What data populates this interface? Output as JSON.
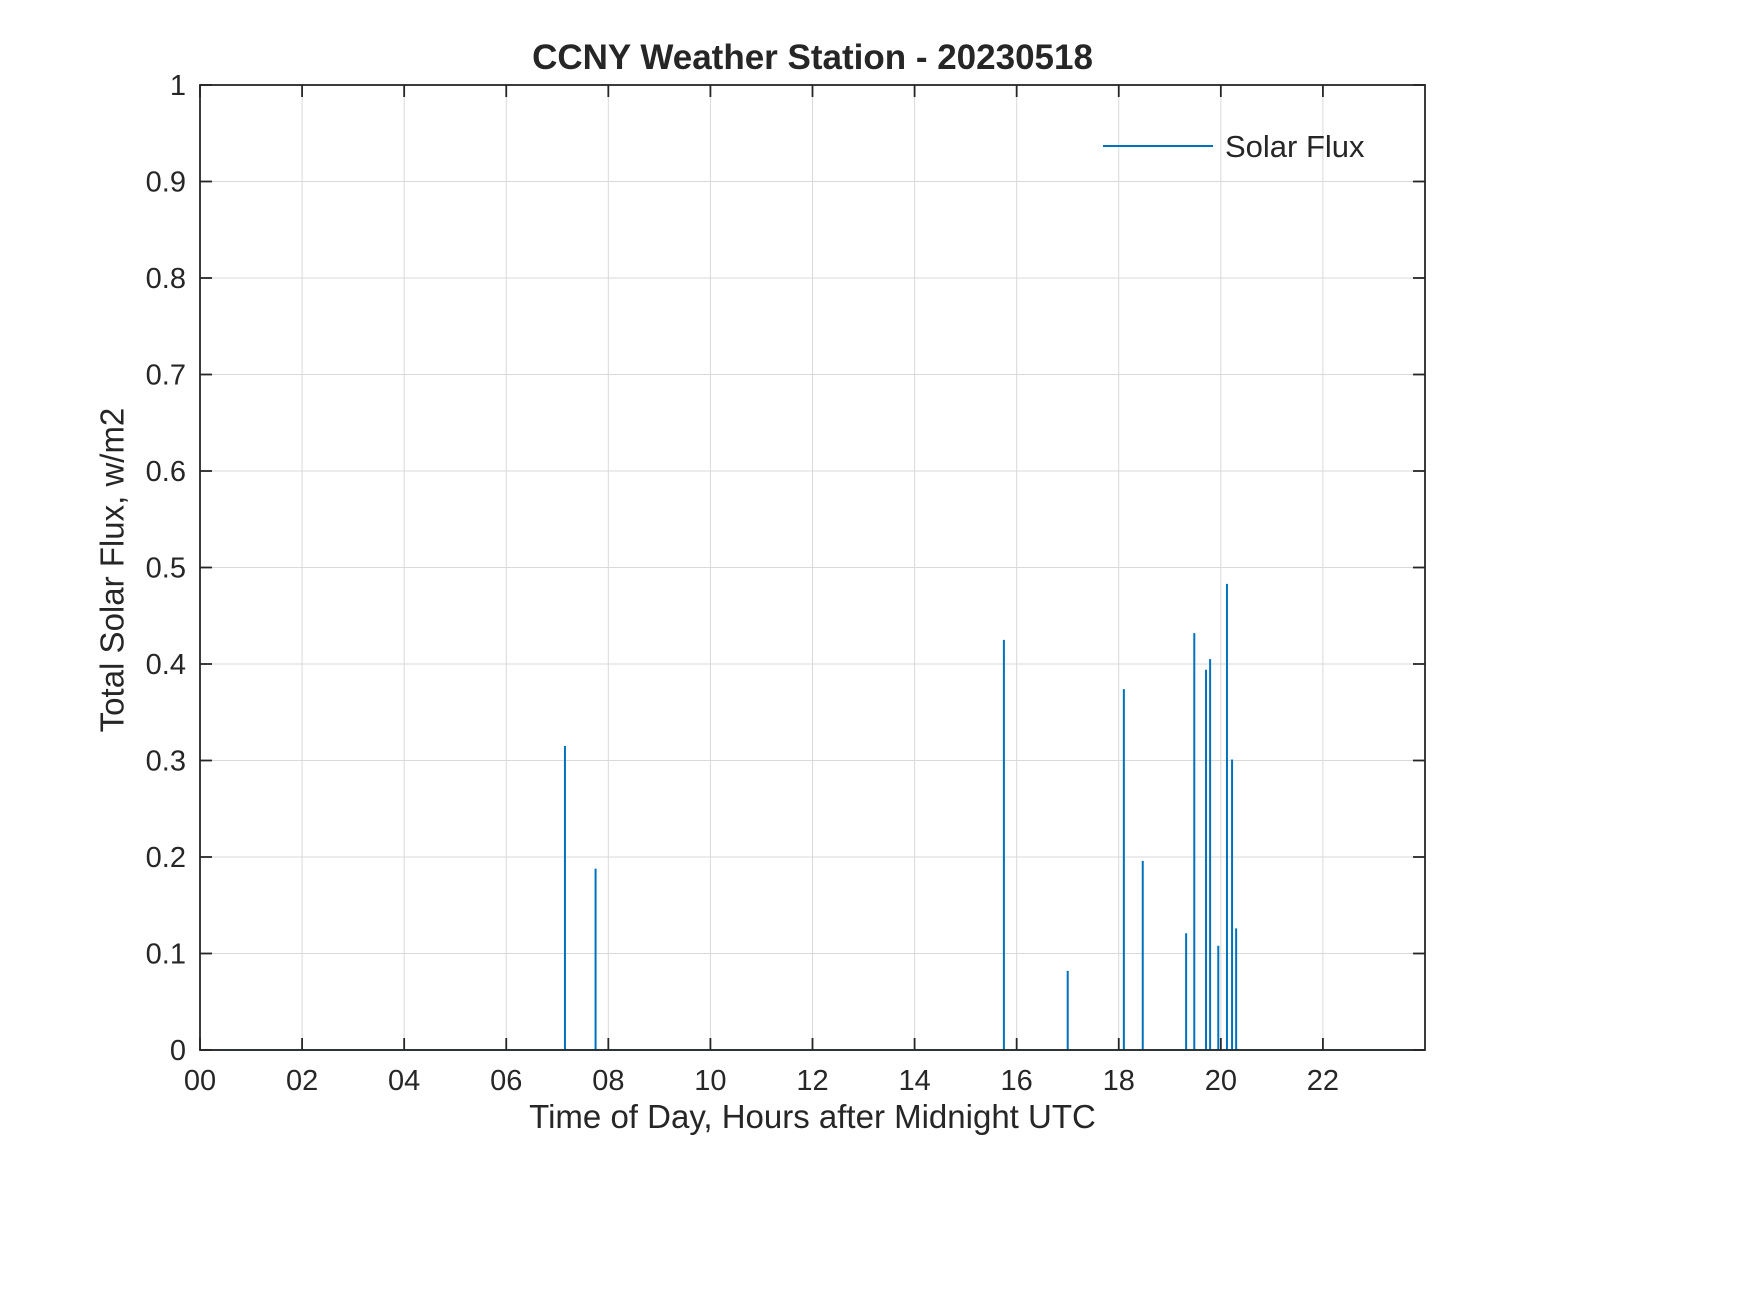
{
  "chart_data": {
    "type": "line",
    "title": "CCNY Weather Station - 20230518",
    "xlabel": "Time of Day, Hours after Midnight UTC",
    "ylabel": "Total Solar Flux, w/m2",
    "xlim": [
      0,
      24
    ],
    "ylim": [
      0,
      1
    ],
    "xticks": [
      0,
      2,
      4,
      6,
      8,
      10,
      12,
      14,
      16,
      18,
      20,
      22
    ],
    "xtick_labels": [
      "00",
      "02",
      "04",
      "06",
      "08",
      "10",
      "12",
      "14",
      "16",
      "18",
      "20",
      "22"
    ],
    "yticks": [
      0,
      0.1,
      0.2,
      0.3,
      0.4,
      0.5,
      0.6,
      0.7,
      0.8,
      0.9,
      1
    ],
    "ytick_labels": [
      "0",
      "0.1",
      "0.2",
      "0.3",
      "0.4",
      "0.5",
      "0.6",
      "0.7",
      "0.8",
      "0.9",
      "1"
    ],
    "grid": true,
    "legend": {
      "position": "northeast",
      "entries": [
        {
          "label": "Solar Flux",
          "color": "#0072BD"
        }
      ]
    },
    "series": [
      {
        "name": "Solar Flux",
        "color": "#0072BD",
        "baseline": 0,
        "spikes": [
          {
            "x": 7.15,
            "y": 0.315
          },
          {
            "x": 7.75,
            "y": 0.188
          },
          {
            "x": 15.75,
            "y": 0.425
          },
          {
            "x": 17.0,
            "y": 0.082
          },
          {
            "x": 18.1,
            "y": 0.374
          },
          {
            "x": 18.47,
            "y": 0.196
          },
          {
            "x": 19.32,
            "y": 0.121
          },
          {
            "x": 19.48,
            "y": 0.432
          },
          {
            "x": 19.71,
            "y": 0.394
          },
          {
            "x": 19.79,
            "y": 0.405
          },
          {
            "x": 19.95,
            "y": 0.108
          },
          {
            "x": 20.12,
            "y": 0.483
          },
          {
            "x": 20.22,
            "y": 0.301
          },
          {
            "x": 20.3,
            "y": 0.126
          }
        ]
      }
    ],
    "colors": {
      "axis": "#262626",
      "grid": "#d9d9d9",
      "text": "#262626",
      "line": "#0072BD"
    }
  }
}
